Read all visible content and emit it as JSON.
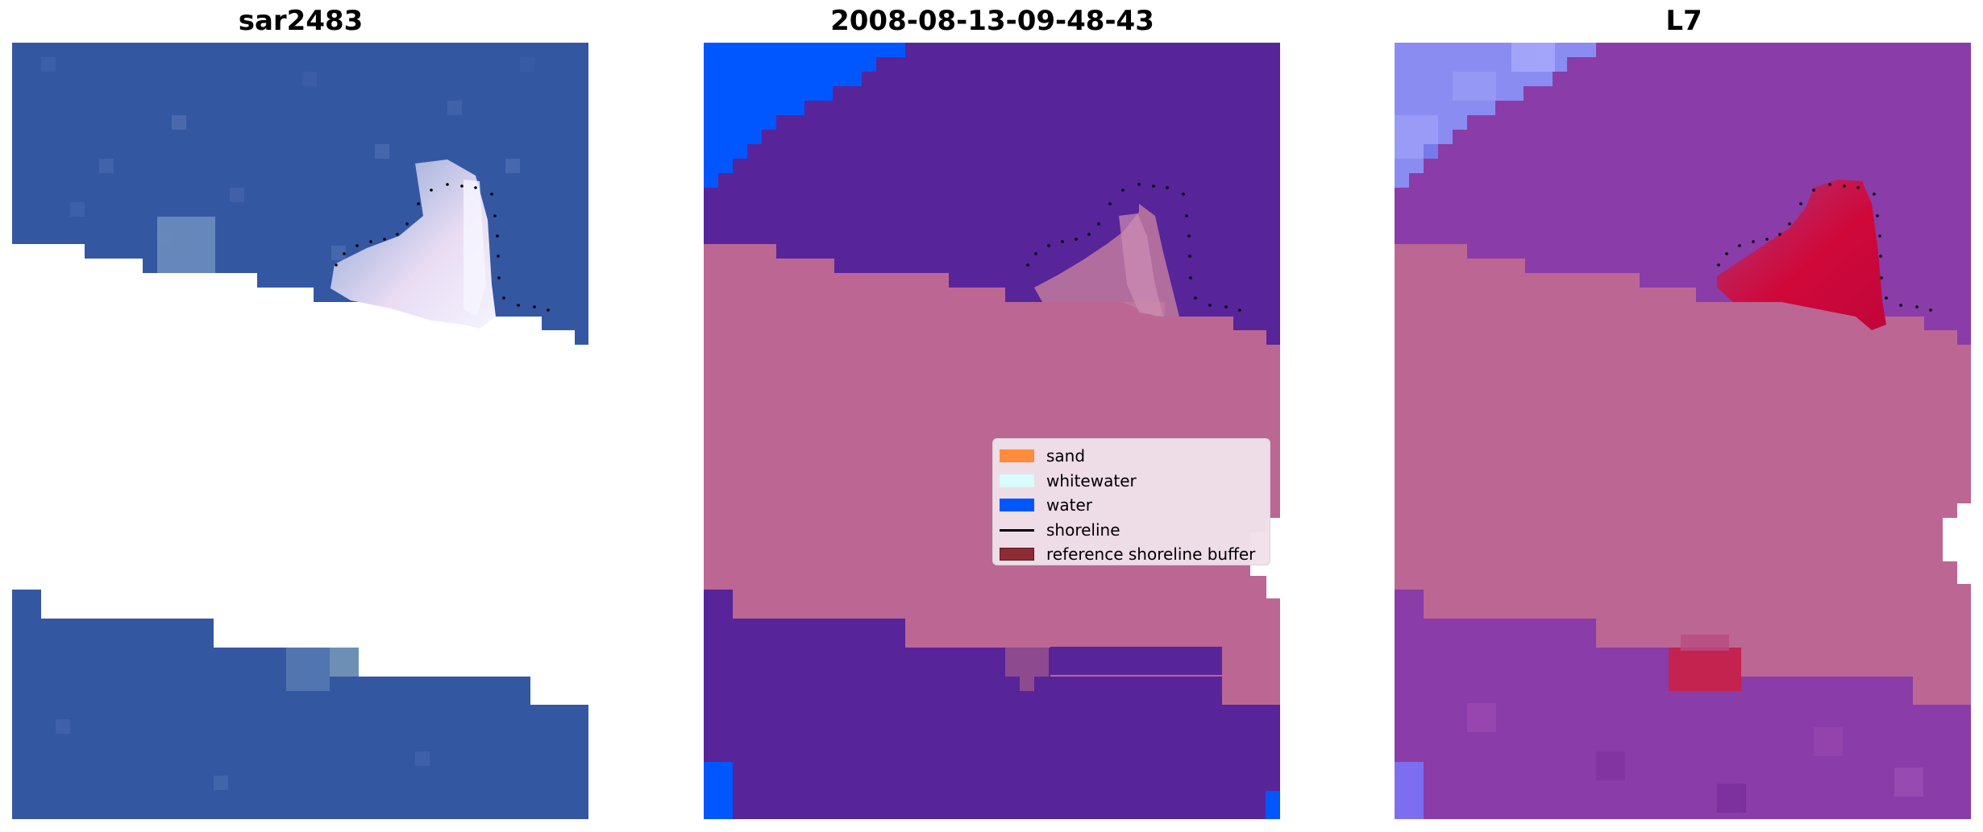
{
  "panels": [
    {
      "id": "rgb",
      "title": "sar2483"
    },
    {
      "id": "classification",
      "title": "2008-08-13-09-48-43"
    },
    {
      "id": "index",
      "title": "L7"
    }
  ],
  "legend": {
    "items": [
      {
        "key": "sand",
        "label": "sand",
        "color": "#ff8c3a",
        "kind": "patch"
      },
      {
        "key": "whitewater",
        "label": "whitewater",
        "color": "#d8fbfb",
        "kind": "patch"
      },
      {
        "key": "water",
        "label": "water",
        "color": "#0056ff",
        "kind": "patch"
      },
      {
        "key": "shoreline",
        "label": "shoreline",
        "color": "#000000",
        "kind": "line"
      },
      {
        "key": "buffer",
        "label": "reference shoreline buffer",
        "color": "#8e2b34",
        "kind": "patch"
      }
    ]
  },
  "colors": {
    "rgb_water": "#3358a3",
    "class_water": "#57249a",
    "class_deep_water": "#0056ff",
    "class_buffer": "#bc6693",
    "index_water": "#8a3ca8",
    "index_buffer": "#bc6693",
    "index_sand": "#c6062f"
  }
}
